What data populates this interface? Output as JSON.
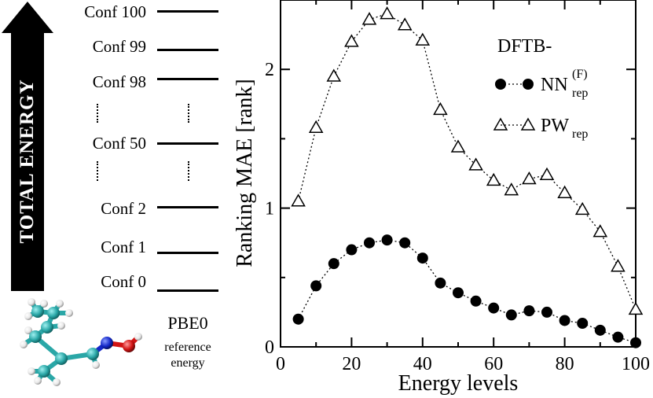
{
  "diagram": {
    "arrow_label": "TOTAL ENERGY",
    "levels": [
      "Conf 100",
      "Conf 99",
      "Conf 98",
      "Conf 50",
      "Conf 2",
      "Conf 1",
      "Conf 0"
    ],
    "method_label": "PBE0",
    "reference_label_line1": "reference",
    "reference_label_line2": "energy"
  },
  "colors": {
    "carbon": "#2aa7a7",
    "nitrogen": "#1428c8",
    "oxygen": "#d21414",
    "hydrogen": "#e8e8e8"
  },
  "chart_data": {
    "type": "scatter",
    "title": "",
    "xlabel": "Energy levels",
    "ylabel": "Ranking MAE [rank]",
    "xlim": [
      0,
      100
    ],
    "ylim": [
      0,
      2.5
    ],
    "xticks": [
      "0",
      "20",
      "40",
      "60",
      "80",
      "100"
    ],
    "yticks": [
      "0",
      "1",
      "2"
    ],
    "legend_title": "DFTB-",
    "x": [
      5,
      10,
      15,
      20,
      25,
      30,
      35,
      40,
      45,
      50,
      55,
      60,
      65,
      70,
      75,
      80,
      85,
      90,
      95,
      100
    ],
    "series": [
      {
        "name": "NN",
        "superscript": "(F)",
        "subscript": "rep",
        "marker": "filled-circle",
        "values": [
          0.2,
          0.44,
          0.6,
          0.7,
          0.75,
          0.77,
          0.75,
          0.64,
          0.46,
          0.39,
          0.33,
          0.28,
          0.23,
          0.26,
          0.25,
          0.19,
          0.17,
          0.12,
          0.07,
          0.03
        ]
      },
      {
        "name": "PW",
        "superscript": "",
        "subscript": "rep",
        "marker": "open-triangle",
        "values": [
          1.05,
          1.58,
          1.95,
          2.2,
          2.36,
          2.4,
          2.32,
          2.21,
          1.71,
          1.44,
          1.31,
          1.2,
          1.13,
          1.21,
          1.24,
          1.11,
          0.99,
          0.83,
          0.58,
          0.27
        ]
      }
    ]
  }
}
